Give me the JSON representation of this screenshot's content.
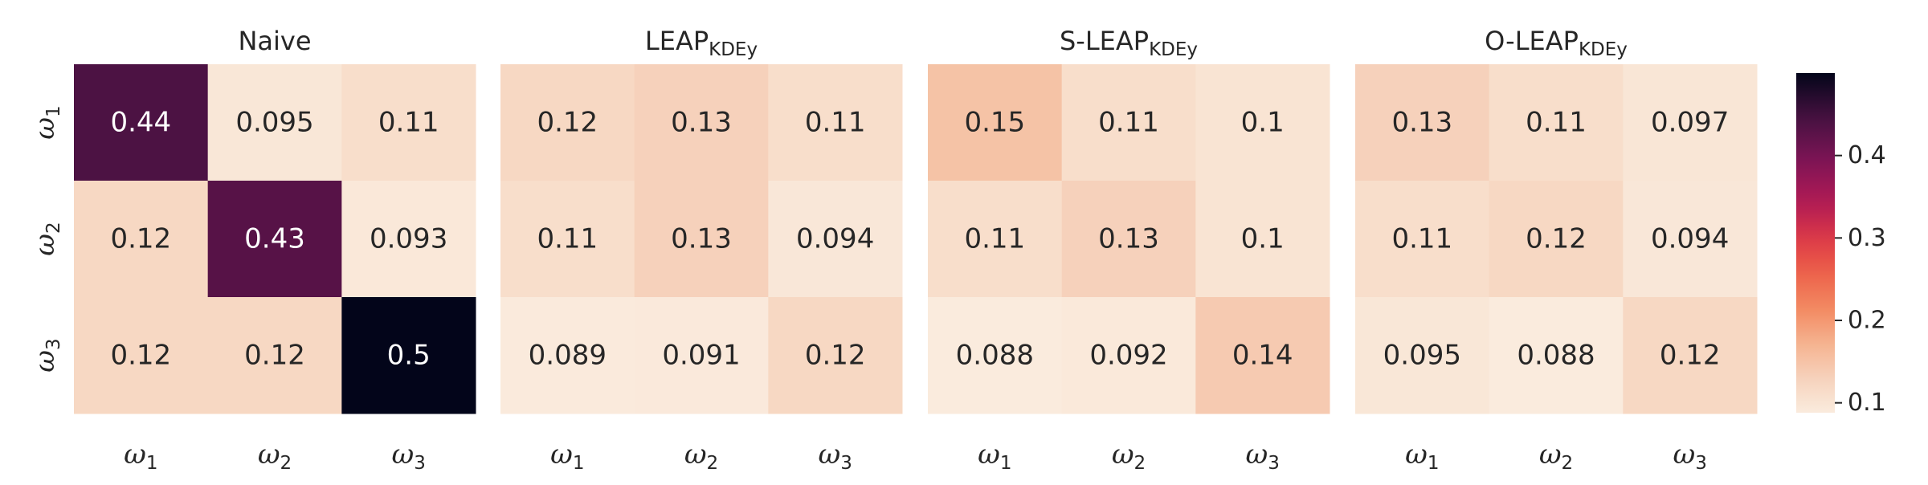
{
  "chart_data": {
    "type": "heatmap",
    "colorbar": {
      "colormap": "rocket_r",
      "vmin": 0.088,
      "vmax": 0.5,
      "ticks": [
        0.1,
        0.2,
        0.3,
        0.4
      ],
      "tick_labels": [
        "0.1",
        "0.2",
        "0.3",
        "0.4"
      ]
    },
    "row_labels": [
      "ω1",
      "ω2",
      "ω3"
    ],
    "col_labels": [
      "ω1",
      "ω2",
      "ω3"
    ],
    "panels": [
      {
        "title": "Naive",
        "title_sub": "",
        "values": [
          [
            0.44,
            0.095,
            0.11
          ],
          [
            0.12,
            0.43,
            0.093
          ],
          [
            0.12,
            0.12,
            0.5
          ]
        ],
        "labels": [
          [
            "0.44",
            "0.095",
            "0.11"
          ],
          [
            "0.12",
            "0.43",
            "0.093"
          ],
          [
            "0.12",
            "0.12",
            "0.5"
          ]
        ]
      },
      {
        "title": "LEAP",
        "title_sub": "KDEy",
        "values": [
          [
            0.12,
            0.13,
            0.11
          ],
          [
            0.11,
            0.13,
            0.094
          ],
          [
            0.089,
            0.091,
            0.12
          ]
        ],
        "labels": [
          [
            "0.12",
            "0.13",
            "0.11"
          ],
          [
            "0.11",
            "0.13",
            "0.094"
          ],
          [
            "0.089",
            "0.091",
            "0.12"
          ]
        ]
      },
      {
        "title": "S-LEAP",
        "title_sub": "KDEy",
        "values": [
          [
            0.15,
            0.11,
            0.1
          ],
          [
            0.11,
            0.13,
            0.1
          ],
          [
            0.088,
            0.092,
            0.14
          ]
        ],
        "labels": [
          [
            "0.15",
            "0.11",
            "0.1"
          ],
          [
            "0.11",
            "0.13",
            "0.1"
          ],
          [
            "0.088",
            "0.092",
            "0.14"
          ]
        ]
      },
      {
        "title": "O-LEAP",
        "title_sub": "KDEy",
        "values": [
          [
            0.13,
            0.11,
            0.097
          ],
          [
            0.11,
            0.12,
            0.094
          ],
          [
            0.095,
            0.088,
            0.12
          ]
        ],
        "labels": [
          [
            "0.13",
            "0.11",
            "0.097"
          ],
          [
            "0.11",
            "0.12",
            "0.094"
          ],
          [
            "0.095",
            "0.088",
            "0.12"
          ]
        ]
      }
    ]
  }
}
